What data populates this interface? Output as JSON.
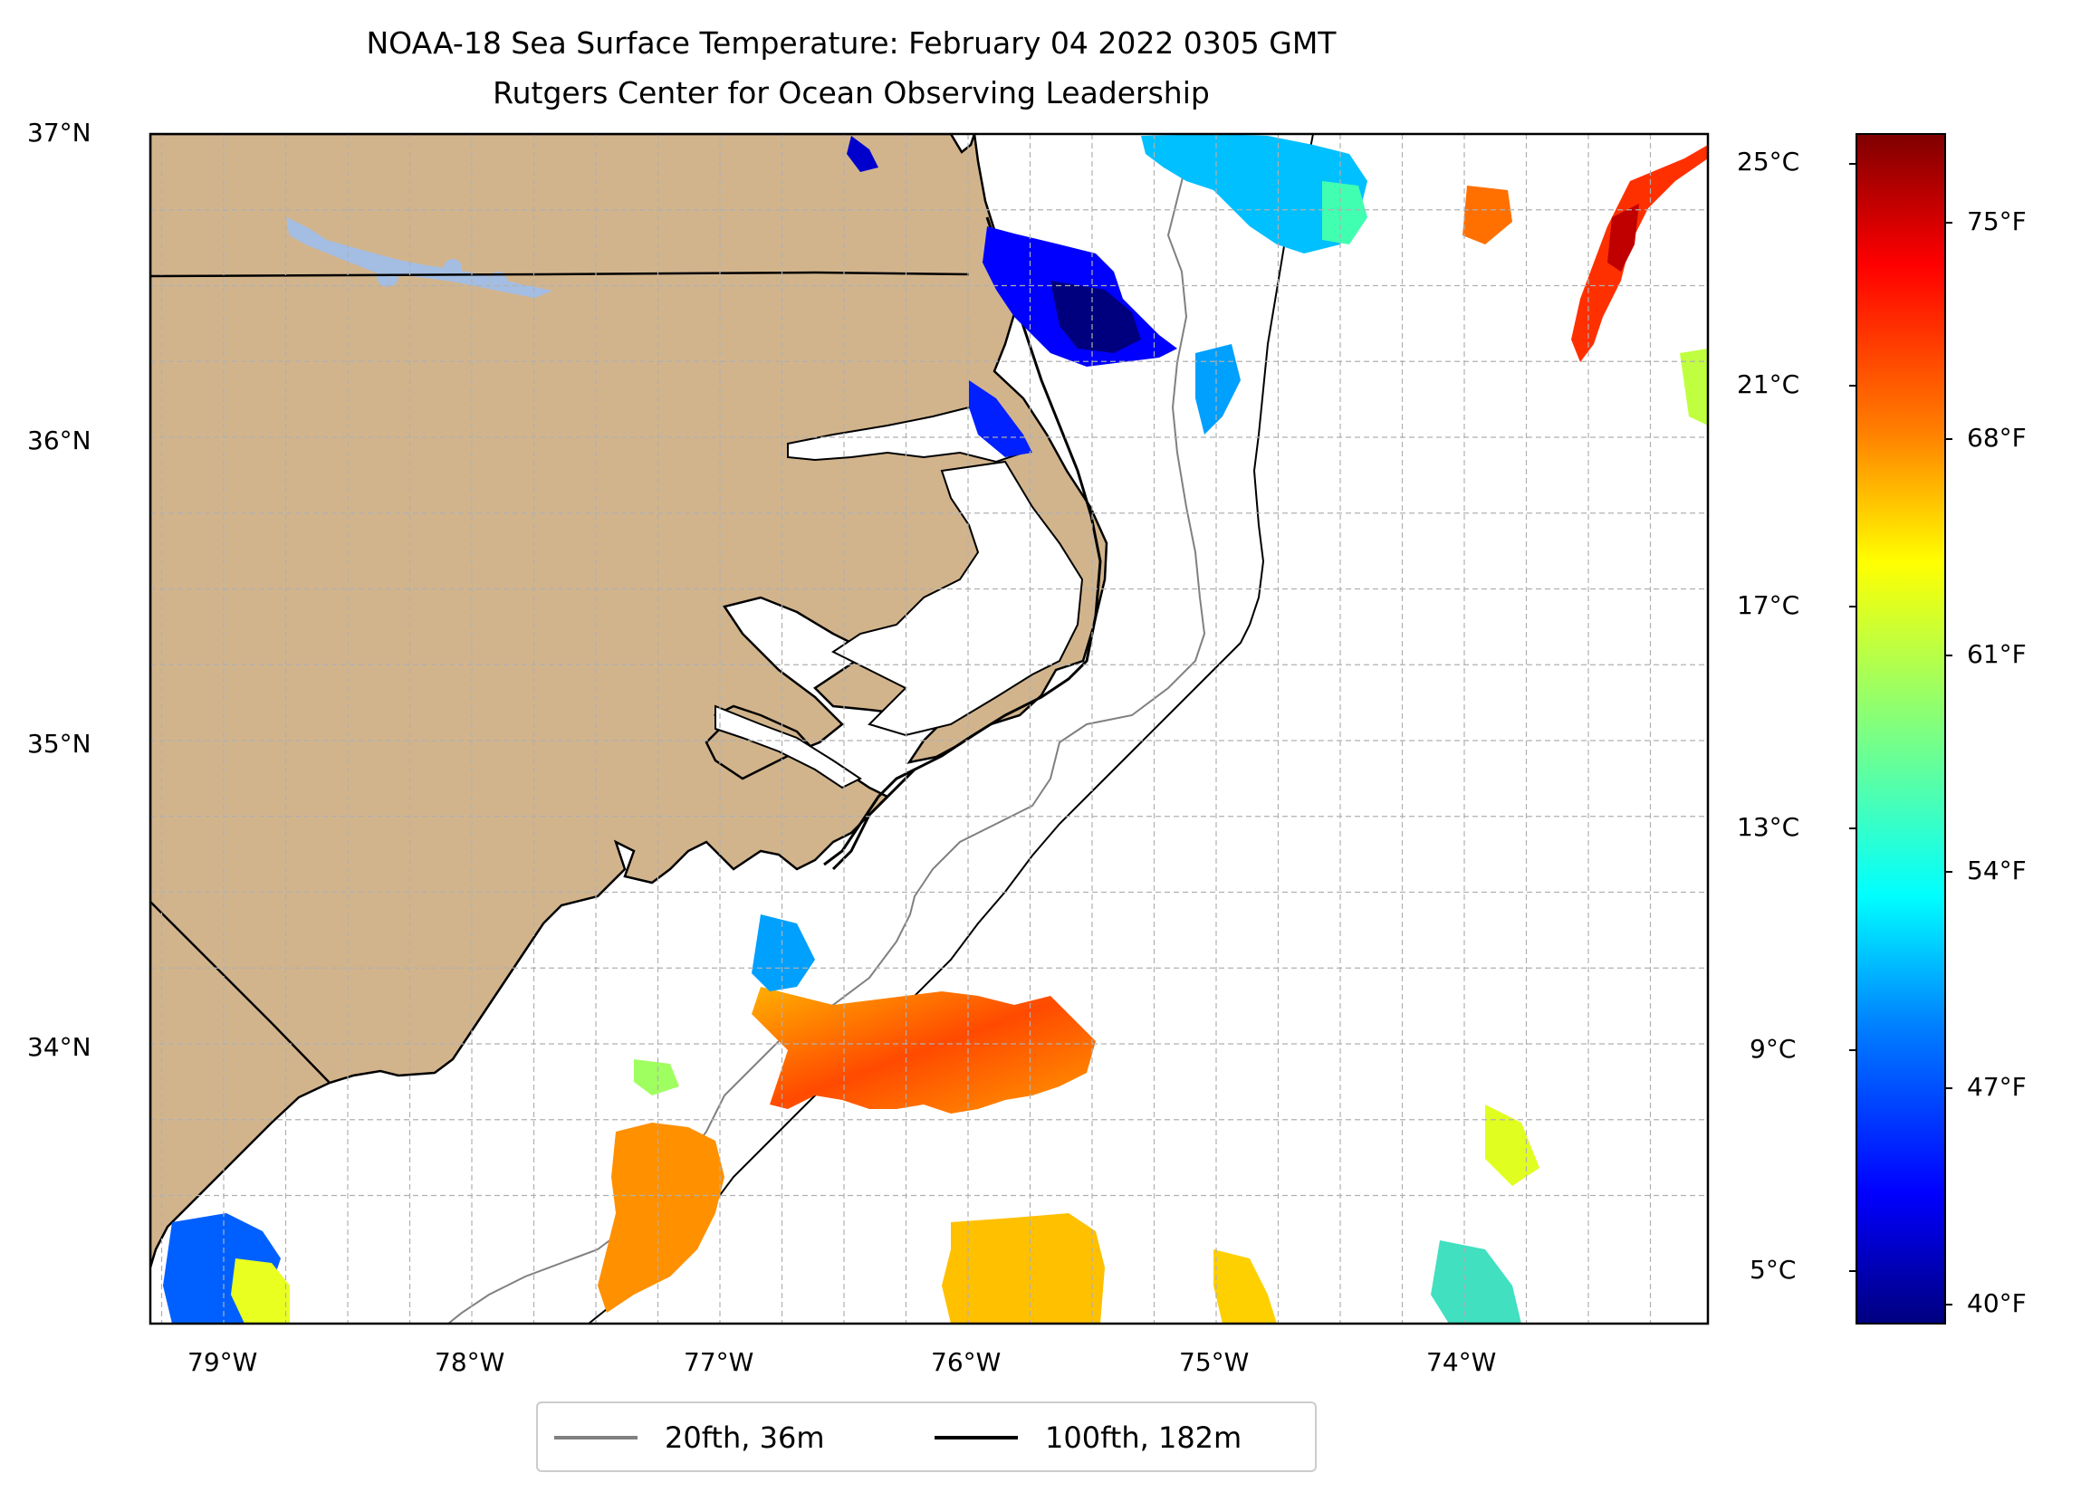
{
  "title": {
    "line1": "NOAA-18 Sea Surface Temperature: February 04 2022 0305 GMT",
    "line2": "Rutgers Center for Ocean Observing Leadership"
  },
  "map": {
    "lat_labels": [
      "37°N",
      "36°N",
      "35°N",
      "34°N"
    ],
    "lon_labels": [
      "79°W",
      "78°W",
      "77°W",
      "76°W",
      "75°W",
      "74°W"
    ],
    "land_color": "#d2b48c",
    "lake_color": "#a3bde3",
    "grid": "dashed"
  },
  "colorbar": {
    "celsius_labels": [
      "25°C",
      "21°C",
      "17°C",
      "13°C",
      "9°C",
      "5°C"
    ],
    "fahrenheit_labels": [
      "75°F",
      "68°F",
      "61°F",
      "54°F",
      "47°F",
      "40°F"
    ],
    "colormap": "jet",
    "stops": [
      "#00007f",
      "#0000ff",
      "#007fff",
      "#00ffff",
      "#7fff7f",
      "#ffff00",
      "#ff7f00",
      "#ff0000",
      "#7f0000"
    ]
  },
  "legend": {
    "items": [
      {
        "label": "20fth, 36m",
        "color": "#808080"
      },
      {
        "label": "100fth, 182m",
        "color": "#000000"
      }
    ]
  }
}
